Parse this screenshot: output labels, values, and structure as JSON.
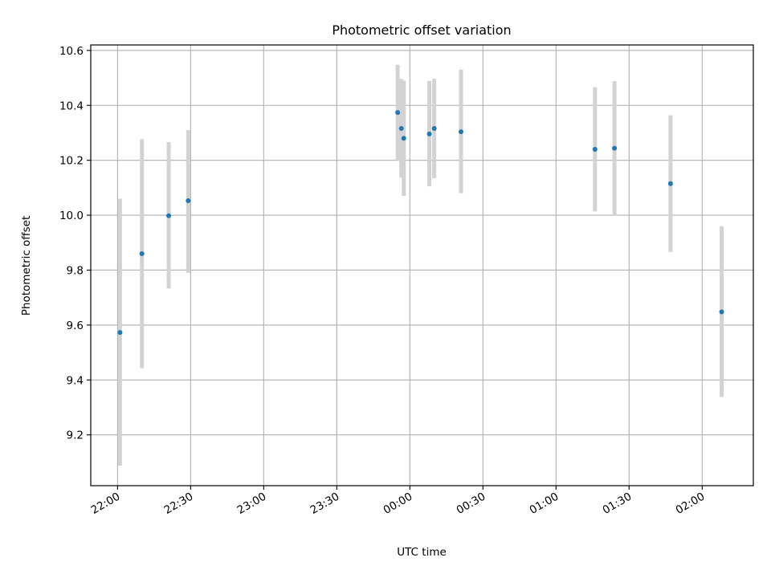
{
  "chart_data": {
    "type": "scatter",
    "title": "Photometric offset variation",
    "xlabel": "UTC time",
    "ylabel": "Photometric offset",
    "x_axis_type": "time",
    "x_range": [
      "2023-01-01T21:49:00",
      "2023-01-02T02:21:00"
    ],
    "ylim": [
      9.015,
      10.62
    ],
    "x_ticks": [
      {
        "t": "2023-01-01T22:00:00",
        "label": "22:00"
      },
      {
        "t": "2023-01-01T22:30:00",
        "label": "22:30"
      },
      {
        "t": "2023-01-01T23:00:00",
        "label": "23:00"
      },
      {
        "t": "2023-01-01T23:30:00",
        "label": "23:30"
      },
      {
        "t": "2023-01-02T00:00:00",
        "label": "00:00"
      },
      {
        "t": "2023-01-02T00:30:00",
        "label": "00:30"
      },
      {
        "t": "2023-01-02T01:00:00",
        "label": "01:00"
      },
      {
        "t": "2023-01-02T01:30:00",
        "label": "01:30"
      },
      {
        "t": "2023-01-02T02:00:00",
        "label": "02:00"
      }
    ],
    "y_ticks": [
      {
        "v": 9.2,
        "label": "9.2"
      },
      {
        "v": 9.4,
        "label": "9.4"
      },
      {
        "v": 9.6,
        "label": "9.6"
      },
      {
        "v": 9.8,
        "label": "9.8"
      },
      {
        "v": 10.0,
        "label": "10.0"
      },
      {
        "v": 10.2,
        "label": "10.2"
      },
      {
        "v": 10.4,
        "label": "10.4"
      },
      {
        "v": 10.6,
        "label": "10.6"
      }
    ],
    "grid": true,
    "legend": "none",
    "point_color": "#1f77b4",
    "errorbar_color": "#d3d3d3",
    "points": [
      {
        "t": "2023-01-01T22:01:00",
        "y": 9.573,
        "lo": 9.088,
        "hi": 10.06
      },
      {
        "t": "2023-01-01T22:10:00",
        "y": 9.86,
        "lo": 9.443,
        "hi": 10.277
      },
      {
        "t": "2023-01-01T22:21:00",
        "y": 9.998,
        "lo": 9.733,
        "hi": 10.266
      },
      {
        "t": "2023-01-01T22:29:00",
        "y": 10.053,
        "lo": 9.79,
        "hi": 10.31
      },
      {
        "t": "2023-01-01T23:55:00",
        "y": 10.374,
        "lo": 10.2,
        "hi": 10.548
      },
      {
        "t": "2023-01-01T23:56:30",
        "y": 10.316,
        "lo": 10.137,
        "hi": 10.496
      },
      {
        "t": "2023-01-01T23:57:30",
        "y": 10.28,
        "lo": 10.07,
        "hi": 10.49
      },
      {
        "t": "2023-01-02T00:08:00",
        "y": 10.296,
        "lo": 10.105,
        "hi": 10.489
      },
      {
        "t": "2023-01-02T00:10:00",
        "y": 10.316,
        "lo": 10.135,
        "hi": 10.497
      },
      {
        "t": "2023-01-02T00:21:00",
        "y": 10.304,
        "lo": 10.08,
        "hi": 10.53
      },
      {
        "t": "2023-01-02T01:16:00",
        "y": 10.24,
        "lo": 10.014,
        "hi": 10.466
      },
      {
        "t": "2023-01-02T01:24:00",
        "y": 10.244,
        "lo": 10.0,
        "hi": 10.488
      },
      {
        "t": "2023-01-02T01:47:00",
        "y": 10.115,
        "lo": 9.866,
        "hi": 10.364
      },
      {
        "t": "2023-01-02T02:08:00",
        "y": 9.648,
        "lo": 9.338,
        "hi": 9.96
      }
    ]
  }
}
